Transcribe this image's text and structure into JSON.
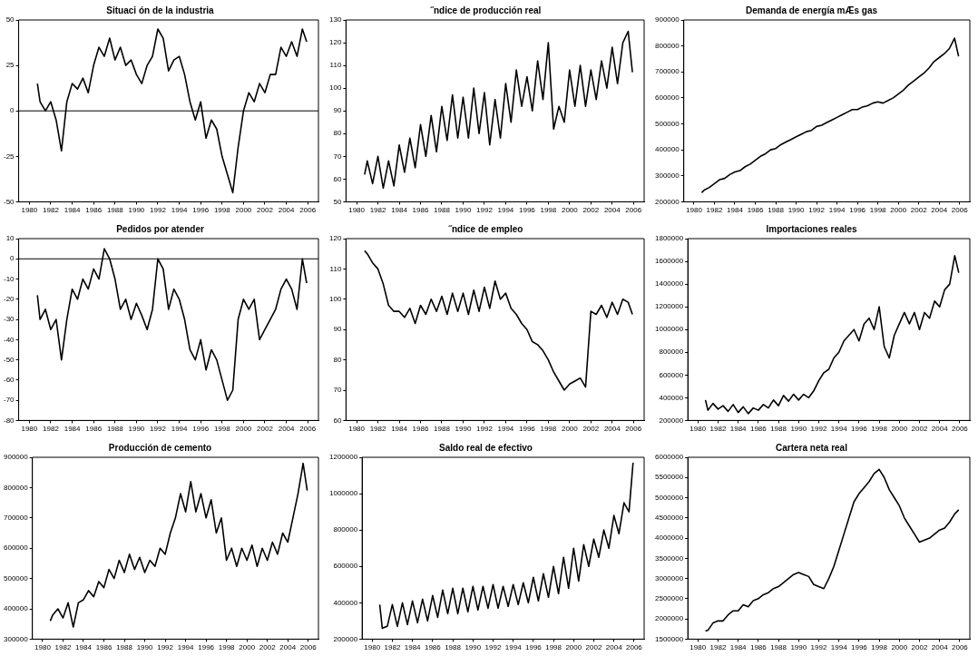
{
  "chart_data": [
    {
      "type": "line",
      "title": "Situaci ón de la industria",
      "color": "#000000",
      "xlim": [
        1979,
        2007
      ],
      "xticks": [
        1980,
        1982,
        1984,
        1986,
        1988,
        1990,
        1992,
        1994,
        1996,
        1998,
        2000,
        2002,
        2004,
        2006
      ],
      "ylim": [
        -50,
        50
      ],
      "yticks": [
        -50,
        -25,
        0,
        25,
        50
      ],
      "ref_lines": [
        {
          "axis": "y",
          "value": 0
        }
      ],
      "x": [
        1980.75,
        1981,
        1981.5,
        1982,
        1982.5,
        1983,
        1983.5,
        1984,
        1984.5,
        1985,
        1985.5,
        1986,
        1986.5,
        1987,
        1987.5,
        1988,
        1988.5,
        1989,
        1989.5,
        1990,
        1990.5,
        1991,
        1991.5,
        1992,
        1992.5,
        1993,
        1993.5,
        1994,
        1994.5,
        1995,
        1995.5,
        1996,
        1996.5,
        1997,
        1997.5,
        1998,
        1998.5,
        1999,
        1999.5,
        2000,
        2000.5,
        2001,
        2001.5,
        2002,
        2002.5,
        2003,
        2003.5,
        2004,
        2004.5,
        2005,
        2005.5,
        2005.9
      ],
      "values": [
        15,
        5,
        0,
        5,
        -5,
        -22,
        5,
        15,
        12,
        18,
        10,
        25,
        35,
        30,
        40,
        28,
        35,
        25,
        28,
        20,
        15,
        25,
        30,
        45,
        40,
        22,
        28,
        30,
        20,
        5,
        -5,
        5,
        -15,
        -5,
        -10,
        -25,
        -35,
        -45,
        -20,
        0,
        10,
        5,
        15,
        10,
        20,
        20,
        35,
        30,
        38,
        30,
        45,
        38
      ]
    },
    {
      "type": "line",
      "title": "˝ndice de producción real",
      "color": "#000000",
      "xlim": [
        1979,
        2007
      ],
      "xticks": [
        1980,
        1982,
        1984,
        1986,
        1988,
        1990,
        1992,
        1994,
        1996,
        1998,
        2000,
        2002,
        2004,
        2006
      ],
      "ylim": [
        50,
        130
      ],
      "yticks": [
        50,
        60,
        70,
        80,
        90,
        100,
        110,
        120,
        130
      ],
      "x": [
        1980.75,
        1981,
        1981.5,
        1982,
        1982.5,
        1983,
        1983.5,
        1984,
        1984.5,
        1985,
        1985.5,
        1986,
        1986.5,
        1987,
        1987.5,
        1988,
        1988.5,
        1989,
        1989.5,
        1990,
        1990.5,
        1991,
        1991.5,
        1992,
        1992.5,
        1993,
        1993.5,
        1994,
        1994.5,
        1995,
        1995.5,
        1996,
        1996.5,
        1997,
        1997.5,
        1998,
        1998.5,
        1999,
        1999.5,
        2000,
        2000.5,
        2001,
        2001.5,
        2002,
        2002.5,
        2003,
        2003.5,
        2004,
        2004.5,
        2005,
        2005.5,
        2005.9
      ],
      "values": [
        62,
        68,
        58,
        70,
        56,
        68,
        57,
        75,
        63,
        78,
        65,
        84,
        70,
        88,
        72,
        92,
        77,
        97,
        78,
        96,
        78,
        100,
        80,
        98,
        75,
        95,
        78,
        102,
        85,
        108,
        92,
        105,
        90,
        112,
        95,
        120,
        82,
        92,
        85,
        108,
        92,
        110,
        92,
        108,
        95,
        112,
        100,
        118,
        102,
        120,
        125,
        107
      ]
    },
    {
      "type": "line",
      "title": "Demanda de energía mÆs gas",
      "color": "#000000",
      "xlim": [
        1979,
        2007
      ],
      "xticks": [
        1980,
        1982,
        1984,
        1986,
        1988,
        1990,
        1992,
        1994,
        1996,
        1998,
        2000,
        2002,
        2004,
        2006
      ],
      "ylim": [
        200000,
        900000
      ],
      "yticks": [
        200000,
        300000,
        400000,
        500000,
        600000,
        700000,
        800000,
        900000
      ],
      "x": [
        1980.75,
        1981,
        1981.5,
        1982,
        1982.5,
        1983,
        1983.5,
        1984,
        1984.5,
        1985,
        1985.5,
        1986,
        1986.5,
        1987,
        1987.5,
        1988,
        1988.5,
        1989,
        1989.5,
        1990,
        1990.5,
        1991,
        1991.5,
        1992,
        1992.5,
        1993,
        1993.5,
        1994,
        1994.5,
        1995,
        1995.5,
        1996,
        1996.5,
        1997,
        1997.5,
        1998,
        1998.5,
        1999,
        1999.5,
        2000,
        2000.5,
        2001,
        2001.5,
        2002,
        2002.5,
        2003,
        2003.5,
        2004,
        2004.5,
        2005,
        2005.5,
        2005.9
      ],
      "values": [
        235000,
        245000,
        255000,
        270000,
        285000,
        290000,
        305000,
        315000,
        320000,
        335000,
        345000,
        360000,
        375000,
        385000,
        400000,
        405000,
        420000,
        430000,
        440000,
        450000,
        460000,
        470000,
        475000,
        490000,
        495000,
        505000,
        515000,
        525000,
        535000,
        545000,
        555000,
        555000,
        565000,
        570000,
        580000,
        585000,
        580000,
        590000,
        600000,
        615000,
        630000,
        650000,
        665000,
        680000,
        695000,
        715000,
        740000,
        755000,
        770000,
        790000,
        830000,
        760000
      ]
    },
    {
      "type": "line",
      "title": "Pedidos por atender",
      "color": "#000000",
      "xlim": [
        1979,
        2007
      ],
      "xticks": [
        1980,
        1982,
        1984,
        1986,
        1988,
        1990,
        1992,
        1994,
        1996,
        1998,
        2000,
        2002,
        2004,
        2006
      ],
      "ylim": [
        -80,
        10
      ],
      "yticks": [
        -80,
        -70,
        -60,
        -50,
        -40,
        -30,
        -20,
        -10,
        0,
        10
      ],
      "ref_lines": [
        {
          "axis": "y",
          "value": 0
        }
      ],
      "x": [
        1980.75,
        1981,
        1981.5,
        1982,
        1982.5,
        1983,
        1983.5,
        1984,
        1984.5,
        1985,
        1985.5,
        1986,
        1986.5,
        1987,
        1987.5,
        1988,
        1988.5,
        1989,
        1989.5,
        1990,
        1990.5,
        1991,
        1991.5,
        1992,
        1992.5,
        1993,
        1993.5,
        1994,
        1994.5,
        1995,
        1995.5,
        1996,
        1996.5,
        1997,
        1997.5,
        1998,
        1998.5,
        1999,
        1999.5,
        2000,
        2000.5,
        2001,
        2001.5,
        2002,
        2002.5,
        2003,
        2003.5,
        2004,
        2004.5,
        2005,
        2005.5,
        2005.9
      ],
      "values": [
        -18,
        -30,
        -25,
        -35,
        -30,
        -50,
        -30,
        -15,
        -20,
        -10,
        -15,
        -5,
        -10,
        5,
        0,
        -10,
        -25,
        -20,
        -30,
        -22,
        -28,
        -35,
        -25,
        0,
        -5,
        -25,
        -15,
        -20,
        -30,
        -45,
        -50,
        -40,
        -55,
        -45,
        -50,
        -60,
        -70,
        -65,
        -30,
        -20,
        -25,
        -20,
        -40,
        -35,
        -30,
        -25,
        -15,
        -10,
        -15,
        -25,
        0,
        -12
      ]
    },
    {
      "type": "line",
      "title": "˝ndice de empleo",
      "color": "#000000",
      "xlim": [
        1979,
        2007
      ],
      "xticks": [
        1980,
        1982,
        1984,
        1986,
        1988,
        1990,
        1992,
        1994,
        1996,
        1998,
        2000,
        2002,
        2004,
        2006
      ],
      "ylim": [
        60,
        120
      ],
      "yticks": [
        60,
        70,
        80,
        90,
        100,
        110,
        120
      ],
      "x": [
        1980.75,
        1981,
        1981.5,
        1982,
        1982.5,
        1983,
        1983.5,
        1984,
        1984.5,
        1985,
        1985.5,
        1986,
        1986.5,
        1987,
        1987.5,
        1988,
        1988.5,
        1989,
        1989.5,
        1990,
        1990.5,
        1991,
        1991.5,
        1992,
        1992.5,
        1993,
        1993.5,
        1994,
        1994.5,
        1995,
        1995.5,
        1996,
        1996.5,
        1997,
        1997.5,
        1998,
        1998.5,
        1999,
        1999.5,
        2000,
        2000.5,
        2001,
        2001.5,
        2002,
        2002.5,
        2003,
        2003.5,
        2004,
        2004.5,
        2005,
        2005.5,
        2005.9
      ],
      "values": [
        116,
        115,
        112,
        110,
        105,
        98,
        96,
        96,
        94,
        97,
        92,
        98,
        95,
        100,
        96,
        101,
        95,
        102,
        96,
        102,
        95,
        103,
        96,
        104,
        97,
        106,
        100,
        102,
        97,
        95,
        92,
        90,
        86,
        85,
        83,
        80,
        76,
        73,
        70,
        72,
        73,
        74,
        71,
        96,
        95,
        98,
        94,
        99,
        95,
        100,
        99,
        95
      ]
    },
    {
      "type": "line",
      "title": "Importaciones reales",
      "color": "#000000",
      "xlim": [
        1979,
        2007
      ],
      "xticks": [
        1980,
        1982,
        1984,
        1986,
        1988,
        1990,
        1992,
        1994,
        1996,
        1998,
        2000,
        2002,
        2004,
        2006
      ],
      "ylim": [
        200000,
        1800000
      ],
      "yticks": [
        200000,
        400000,
        600000,
        800000,
        1000000,
        1200000,
        1400000,
        1600000,
        1800000
      ],
      "x": [
        1980.75,
        1981,
        1981.5,
        1982,
        1982.5,
        1983,
        1983.5,
        1984,
        1984.5,
        1985,
        1985.5,
        1986,
        1986.5,
        1987,
        1987.5,
        1988,
        1988.5,
        1989,
        1989.5,
        1990,
        1990.5,
        1991,
        1991.5,
        1992,
        1992.5,
        1993,
        1993.5,
        1994,
        1994.5,
        1995,
        1995.5,
        1996,
        1996.5,
        1997,
        1997.5,
        1998,
        1998.5,
        1999,
        1999.5,
        2000,
        2000.5,
        2001,
        2001.5,
        2002,
        2002.5,
        2003,
        2003.5,
        2004,
        2004.5,
        2005,
        2005.5,
        2005.9
      ],
      "values": [
        380000,
        290000,
        350000,
        300000,
        330000,
        280000,
        340000,
        270000,
        320000,
        260000,
        310000,
        290000,
        340000,
        310000,
        380000,
        330000,
        420000,
        370000,
        430000,
        380000,
        430000,
        400000,
        460000,
        550000,
        620000,
        650000,
        750000,
        800000,
        900000,
        950000,
        1000000,
        900000,
        1050000,
        1100000,
        1000000,
        1200000,
        850000,
        750000,
        950000,
        1050000,
        1150000,
        1050000,
        1150000,
        1000000,
        1150000,
        1100000,
        1250000,
        1200000,
        1350000,
        1400000,
        1650000,
        1500000
      ]
    },
    {
      "type": "line",
      "title": "Producción de cemento",
      "color": "#000000",
      "xlim": [
        1979,
        2007
      ],
      "xticks": [
        1980,
        1982,
        1984,
        1986,
        1988,
        1990,
        1992,
        1994,
        1996,
        1998,
        2000,
        2002,
        2004,
        2006
      ],
      "ylim": [
        300000,
        900000
      ],
      "yticks": [
        300000,
        400000,
        500000,
        600000,
        700000,
        800000,
        900000
      ],
      "x": [
        1980.75,
        1981,
        1981.5,
        1982,
        1982.5,
        1983,
        1983.5,
        1984,
        1984.5,
        1985,
        1985.5,
        1986,
        1986.5,
        1987,
        1987.5,
        1988,
        1988.5,
        1989,
        1989.5,
        1990,
        1990.5,
        1991,
        1991.5,
        1992,
        1992.5,
        1993,
        1993.5,
        1994,
        1994.5,
        1995,
        1995.5,
        1996,
        1996.5,
        1997,
        1997.5,
        1998,
        1998.5,
        1999,
        1999.5,
        2000,
        2000.5,
        2001,
        2001.5,
        2002,
        2002.5,
        2003,
        2003.5,
        2004,
        2004.5,
        2005,
        2005.5,
        2005.9
      ],
      "values": [
        360000,
        380000,
        400000,
        370000,
        420000,
        340000,
        420000,
        430000,
        460000,
        440000,
        490000,
        470000,
        530000,
        500000,
        560000,
        520000,
        580000,
        530000,
        570000,
        520000,
        560000,
        540000,
        600000,
        580000,
        650000,
        700000,
        780000,
        720000,
        820000,
        720000,
        780000,
        700000,
        760000,
        650000,
        700000,
        560000,
        600000,
        540000,
        600000,
        560000,
        610000,
        540000,
        600000,
        560000,
        620000,
        580000,
        650000,
        620000,
        700000,
        780000,
        880000,
        790000
      ]
    },
    {
      "type": "line",
      "title": "Saldo real de efectivo",
      "color": "#000000",
      "xlim": [
        1979,
        2007
      ],
      "xticks": [
        1980,
        1982,
        1984,
        1986,
        1988,
        1990,
        1992,
        1994,
        1996,
        1998,
        2000,
        2002,
        2004,
        2006
      ],
      "ylim": [
        200000,
        1200000
      ],
      "yticks": [
        200000,
        400000,
        600000,
        800000,
        1000000,
        1200000
      ],
      "x": [
        1980.75,
        1981,
        1981.5,
        1982,
        1982.5,
        1983,
        1983.5,
        1984,
        1984.5,
        1985,
        1985.5,
        1986,
        1986.5,
        1987,
        1987.5,
        1988,
        1988.5,
        1989,
        1989.5,
        1990,
        1990.5,
        1991,
        1991.5,
        1992,
        1992.5,
        1993,
        1993.5,
        1994,
        1994.5,
        1995,
        1995.5,
        1996,
        1996.5,
        1997,
        1997.5,
        1998,
        1998.5,
        1999,
        1999.5,
        2000,
        2000.5,
        2001,
        2001.5,
        2002,
        2002.5,
        2003,
        2003.5,
        2004,
        2004.5,
        2005,
        2005.5,
        2005.9
      ],
      "values": [
        390000,
        260000,
        270000,
        390000,
        270000,
        400000,
        280000,
        410000,
        290000,
        420000,
        300000,
        440000,
        320000,
        470000,
        340000,
        480000,
        340000,
        480000,
        350000,
        490000,
        360000,
        490000,
        370000,
        500000,
        370000,
        490000,
        380000,
        500000,
        390000,
        510000,
        400000,
        540000,
        410000,
        560000,
        430000,
        600000,
        450000,
        650000,
        480000,
        700000,
        520000,
        720000,
        600000,
        750000,
        650000,
        800000,
        700000,
        880000,
        780000,
        950000,
        900000,
        1170000
      ]
    },
    {
      "type": "line",
      "title": "Cartera neta real",
      "color": "#000000",
      "xlim": [
        1979,
        2007
      ],
      "xticks": [
        1980,
        1982,
        1984,
        1986,
        1988,
        1990,
        1992,
        1994,
        1996,
        1998,
        2000,
        2002,
        2004,
        2006
      ],
      "ylim": [
        1500000,
        6000000
      ],
      "yticks": [
        1500000,
        2000000,
        2500000,
        3000000,
        3500000,
        4000000,
        4500000,
        5000000,
        5500000,
        6000000
      ],
      "x": [
        1980.75,
        1981,
        1981.5,
        1982,
        1982.5,
        1983,
        1983.5,
        1984,
        1984.5,
        1985,
        1985.5,
        1986,
        1986.5,
        1987,
        1987.5,
        1988,
        1988.5,
        1989,
        1989.5,
        1990,
        1990.5,
        1991,
        1991.5,
        1992,
        1992.5,
        1993,
        1993.5,
        1994,
        1994.5,
        1995,
        1995.5,
        1996,
        1996.5,
        1997,
        1997.5,
        1998,
        1998.5,
        1999,
        1999.5,
        2000,
        2000.5,
        2001,
        2001.5,
        2002,
        2002.5,
        2003,
        2003.5,
        2004,
        2004.5,
        2005,
        2005.5,
        2005.9
      ],
      "values": [
        1700000,
        1720000,
        1900000,
        1950000,
        1950000,
        2100000,
        2200000,
        2200000,
        2350000,
        2300000,
        2450000,
        2500000,
        2600000,
        2650000,
        2750000,
        2800000,
        2900000,
        3000000,
        3100000,
        3150000,
        3100000,
        3050000,
        2850000,
        2800000,
        2750000,
        3000000,
        3300000,
        3700000,
        4100000,
        4500000,
        4900000,
        5100000,
        5250000,
        5400000,
        5600000,
        5700000,
        5500000,
        5200000,
        5000000,
        4800000,
        4500000,
        4300000,
        4100000,
        3900000,
        3950000,
        4000000,
        4100000,
        4200000,
        4250000,
        4400000,
        4600000,
        4700000
      ]
    }
  ]
}
